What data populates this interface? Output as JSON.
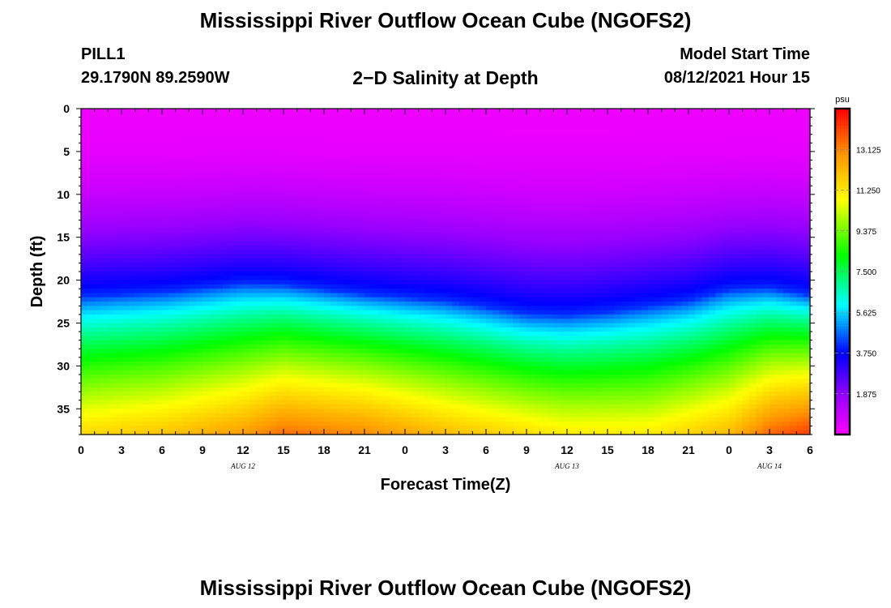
{
  "header": {
    "title": "Mississippi River Outflow Ocean Cube (NGOFS2)",
    "footer_title": "Mississippi River Outflow Ocean Cube (NGOFS2)",
    "station_name": "PILL1",
    "station_coords": "29.1790N  89.2590W",
    "plot_subtitle": "2−D Salinity at Depth",
    "model_start_label": "Model Start Time",
    "model_start_value": "08/12/2021 Hour 15"
  },
  "chart_data": {
    "type": "heatmap",
    "variable": "Salinity",
    "xlabel": "Forecast Time(Z)",
    "ylabel": "Depth (ft)",
    "x_tick_labels": [
      "0",
      "3",
      "6",
      "9",
      "12",
      "15",
      "18",
      "21",
      "0",
      "3",
      "6",
      "9",
      "12",
      "15",
      "18",
      "21",
      "0",
      "3",
      "6"
    ],
    "date_labels": [
      {
        "label": "AUG 12",
        "at_hour": 12
      },
      {
        "label": "AUG 13",
        "at_hour": 36
      },
      {
        "label": "AUG 14",
        "at_hour": 51
      }
    ],
    "xlim_hours": [
      0,
      54
    ],
    "ylim": [
      0,
      38
    ],
    "y_ticks": [
      0,
      5,
      10,
      15,
      20,
      25,
      30,
      35
    ],
    "y_inverted": true,
    "colorbar": {
      "unit": "psu",
      "range": [
        0,
        15
      ],
      "tick_labels": [
        "1.875",
        "3.750",
        "5.625",
        "7.500",
        "9.375",
        "11.250",
        "13.125"
      ],
      "tick_values": [
        1.875,
        3.75,
        5.625,
        7.5,
        9.375,
        11.25,
        13.125
      ]
    },
    "surface_salinity": 0.3,
    "halocline_depth_ft": [
      {
        "hour": 0,
        "depth": 22.0
      },
      {
        "hour": 6,
        "depth": 21.5
      },
      {
        "hour": 12,
        "depth": 20.5
      },
      {
        "hour": 15,
        "depth": 20.6
      },
      {
        "hour": 21,
        "depth": 21.7
      },
      {
        "hour": 27,
        "depth": 22.5
      },
      {
        "hour": 30,
        "depth": 23.2
      },
      {
        "hour": 33,
        "depth": 24.0
      },
      {
        "hour": 36,
        "depth": 24.2
      },
      {
        "hour": 39,
        "depth": 23.8
      },
      {
        "hour": 45,
        "depth": 22.5
      },
      {
        "hour": 48,
        "depth": 21.2
      },
      {
        "hour": 51,
        "depth": 21.0
      },
      {
        "hour": 54,
        "depth": 21.8
      }
    ],
    "bottom_salinity_psu": [
      {
        "hour": 0,
        "value": 11.6
      },
      {
        "hour": 6,
        "value": 12.0
      },
      {
        "hour": 12,
        "value": 12.8
      },
      {
        "hour": 15,
        "value": 13.5
      },
      {
        "hour": 21,
        "value": 13.1
      },
      {
        "hour": 27,
        "value": 12.2
      },
      {
        "hour": 33,
        "value": 11.5
      },
      {
        "hour": 36,
        "value": 11.2
      },
      {
        "hour": 42,
        "value": 11.2
      },
      {
        "hour": 48,
        "value": 12.2
      },
      {
        "hour": 51,
        "value": 13.6
      },
      {
        "hour": 54,
        "value": 14.2
      }
    ]
  }
}
